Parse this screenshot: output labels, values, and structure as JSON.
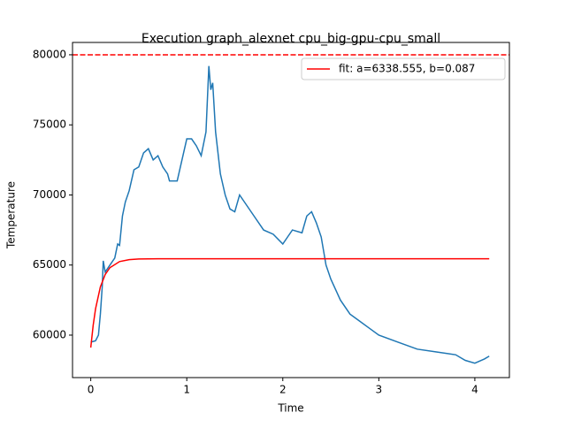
{
  "chart_data": {
    "type": "line",
    "title": "Execution graph_alexnet cpu_big-gpu-cpu_small",
    "x_label": "Time",
    "y_label": "Temperature",
    "xlim": [
      -0.19,
      4.36
    ],
    "ylim": [
      56970,
      80880
    ],
    "xticks": [
      0,
      1,
      2,
      3,
      4
    ],
    "yticks": [
      60000,
      65000,
      70000,
      75000,
      80000
    ],
    "hline": 80000,
    "hline_color": "#ff0000",
    "legend": "upper right",
    "series": [
      {
        "color": "#1f77b4",
        "x": [
          0,
          0.05,
          0.08,
          0.1,
          0.12,
          0.13,
          0.15,
          0.2,
          0.25,
          0.28,
          0.3,
          0.33,
          0.36,
          0.4,
          0.45,
          0.5,
          0.55,
          0.6,
          0.65,
          0.7,
          0.75,
          0.8,
          0.82,
          0.9,
          0.95,
          1.0,
          1.05,
          1.1,
          1.15,
          1.2,
          1.23,
          1.25,
          1.27,
          1.3,
          1.35,
          1.4,
          1.45,
          1.5,
          1.55,
          1.6,
          1.7,
          1.8,
          1.9,
          2.0,
          2.05,
          2.1,
          2.2,
          2.25,
          2.3,
          2.35,
          2.4,
          2.45,
          2.5,
          2.6,
          2.7,
          2.8,
          2.9,
          3.0,
          3.2,
          3.4,
          3.6,
          3.8,
          3.9,
          4.0,
          4.1,
          4.15
        ],
        "values": [
          59500,
          59600,
          60000,
          61500,
          63500,
          65300,
          64500,
          65000,
          65500,
          66500,
          66400,
          68500,
          69500,
          70300,
          71800,
          72000,
          73000,
          73300,
          72500,
          72800,
          72000,
          71500,
          71000,
          71000,
          72500,
          74000,
          74000,
          73500,
          72800,
          74500,
          79200,
          77500,
          78000,
          74500,
          71500,
          70000,
          69000,
          68800,
          70000,
          69500,
          68500,
          67500,
          67200,
          66500,
          67000,
          67500,
          67300,
          68500,
          68800,
          68000,
          67000,
          65000,
          64000,
          62500,
          61500,
          61000,
          60500,
          60000,
          59500,
          59000,
          58800,
          58600,
          58200,
          58000,
          58300,
          58500
        ]
      },
      {
        "name": "fit: a=6338.555, b=0.087",
        "color": "#ff0000",
        "x": [
          0,
          0.025,
          0.05,
          0.1,
          0.15,
          0.2,
          0.3,
          0.4,
          0.5,
          0.7,
          1,
          2,
          3,
          4,
          4.15
        ],
        "values": [
          59111,
          60696,
          61882,
          63441,
          64322,
          64816,
          65248,
          65386,
          65430,
          65449,
          65450,
          65450,
          65450,
          65450,
          65450
        ]
      }
    ]
  }
}
